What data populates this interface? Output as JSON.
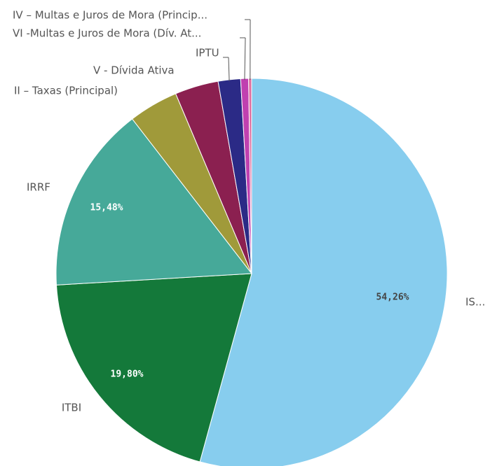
{
  "chart_data": {
    "type": "pie",
    "categories": [
      "IS...",
      "ITBI",
      "IRRF",
      "II – Taxas (Principal)",
      "V - Dívida Ativa",
      "IPTU",
      "VI -Multas e Juros de Mora (Dív. At...",
      "IV – Multas e Juros de Mora (Princip..."
    ],
    "values": [
      54.26,
      19.8,
      15.48,
      4.1,
      3.6,
      1.85,
      0.65,
      0.25
    ],
    "value_labels": [
      "54,26%",
      "19,80%",
      "15,48%",
      null,
      null,
      null,
      null,
      null
    ],
    "colors": [
      "#87cdee",
      "#14793a",
      "#46a999",
      "#a09a3a",
      "#8b2050",
      "#2b2a86",
      "#c040b0",
      "#e070a0"
    ]
  }
}
